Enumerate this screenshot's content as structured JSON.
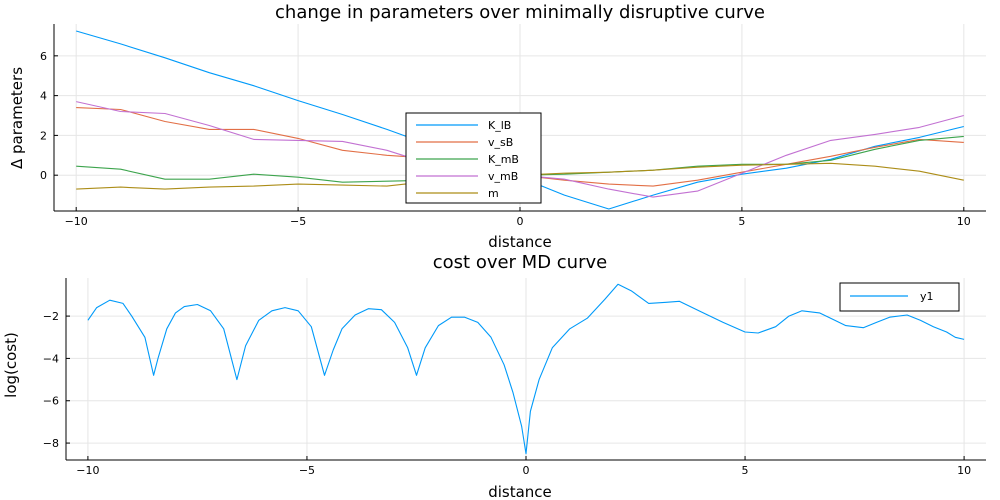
{
  "chart_data": [
    {
      "type": "line",
      "title": "change in parameters over minimally disruptive curve",
      "xlabel": "distance",
      "ylabel": "Δ parameters",
      "xlim": [
        -10.5,
        10.5
      ],
      "ylim": [
        -1.8,
        7.6
      ],
      "xticks": [
        -10,
        -5,
        0,
        5,
        10
      ],
      "xtick_labels": [
        "−10",
        "−5",
        "0",
        "5",
        "10"
      ],
      "yticks": [
        0,
        2,
        4,
        6
      ],
      "ytick_labels": [
        "0",
        "2",
        "4",
        "6"
      ],
      "grid": true,
      "legend_position": "center",
      "series": [
        {
          "name": "K_lB",
          "color": "#009AF9",
          "x": [
            -10,
            -9,
            -8,
            -7,
            -6,
            -5,
            -4,
            -3,
            -2,
            -1,
            0,
            1,
            2,
            3,
            4,
            5,
            6,
            7,
            8,
            9,
            10
          ],
          "y": [
            7.25,
            6.6,
            5.9,
            5.15,
            4.5,
            3.75,
            3.05,
            2.3,
            1.5,
            0.7,
            -0.1,
            -1.0,
            -1.7,
            -1.0,
            -0.35,
            0.05,
            0.35,
            0.8,
            1.45,
            1.9,
            2.45
          ]
        },
        {
          "name": "v_sB",
          "color": "#E26F46",
          "x": [
            -10,
            -9,
            -8,
            -7,
            -6,
            -5,
            -4,
            -3,
            -2,
            -1,
            0,
            1,
            2,
            3,
            4,
            5,
            6,
            7,
            8,
            9,
            10
          ],
          "y": [
            3.4,
            3.3,
            2.7,
            2.3,
            2.3,
            1.85,
            1.25,
            1.0,
            0.85,
            0.3,
            0.0,
            -0.25,
            -0.45,
            -0.55,
            -0.25,
            0.15,
            0.55,
            0.95,
            1.4,
            1.8,
            1.65
          ]
        },
        {
          "name": "K_mB",
          "color": "#3DA44D",
          "x": [
            -10,
            -9,
            -8,
            -7,
            -6,
            -5,
            -4,
            -3,
            -2,
            -1,
            0,
            1,
            2,
            3,
            4,
            5,
            6,
            7,
            8,
            9,
            10
          ],
          "y": [
            0.45,
            0.3,
            -0.2,
            -0.2,
            0.05,
            -0.1,
            -0.35,
            -0.3,
            -0.25,
            -0.1,
            0.0,
            0.05,
            0.15,
            0.25,
            0.45,
            0.55,
            0.55,
            0.75,
            1.3,
            1.75,
            1.95
          ]
        },
        {
          "name": "v_mB",
          "color": "#C271D2",
          "x": [
            -10,
            -9,
            -8,
            -7,
            -6,
            -5,
            -4,
            -3,
            -2,
            -1,
            0,
            1,
            2,
            3,
            4,
            5,
            6,
            7,
            8,
            9,
            10
          ],
          "y": [
            3.7,
            3.2,
            3.1,
            2.5,
            1.8,
            1.75,
            1.7,
            1.25,
            0.55,
            0.15,
            0.0,
            -0.2,
            -0.7,
            -1.1,
            -0.8,
            0.1,
            1.0,
            1.75,
            2.05,
            2.4,
            3.0
          ]
        },
        {
          "name": "m",
          "color": "#AC8D18",
          "x": [
            -10,
            -9,
            -8,
            -7,
            -6,
            -5,
            -4,
            -3,
            -2,
            -1,
            0,
            1,
            2,
            3,
            4,
            5,
            6,
            7,
            8,
            9,
            10
          ],
          "y": [
            -0.7,
            -0.6,
            -0.7,
            -0.6,
            -0.55,
            -0.45,
            -0.5,
            -0.55,
            -0.3,
            -0.2,
            0.0,
            0.1,
            0.15,
            0.25,
            0.4,
            0.5,
            0.55,
            0.6,
            0.45,
            0.2,
            -0.25
          ]
        }
      ]
    },
    {
      "type": "line",
      "title": "cost over MD curve",
      "xlabel": "distance",
      "ylabel": "log(cost)",
      "xlim": [
        -10.5,
        10.5
      ],
      "ylim": [
        -8.8,
        -0.2
      ],
      "xticks": [
        -10,
        -5,
        0,
        5,
        10
      ],
      "xtick_labels": [
        "−10",
        "−5",
        "0",
        "5",
        "10"
      ],
      "yticks": [
        -8,
        -6,
        -4,
        -2
      ],
      "ytick_labels": [
        "−8",
        "−6",
        "−4",
        "−2"
      ],
      "grid": true,
      "legend_position": "top-right",
      "series": [
        {
          "name": "y1",
          "color": "#009AF9",
          "x": [
            -10,
            -9.8,
            -9.5,
            -9.2,
            -9.0,
            -8.7,
            -8.5,
            -8.4,
            -8.2,
            -8.0,
            -7.8,
            -7.5,
            -7.2,
            -6.9,
            -6.6,
            -6.4,
            -6.1,
            -5.8,
            -5.5,
            -5.2,
            -4.9,
            -4.6,
            -4.4,
            -4.2,
            -3.9,
            -3.6,
            -3.3,
            -3.0,
            -2.7,
            -2.5,
            -2.3,
            -2.0,
            -1.7,
            -1.4,
            -1.1,
            -0.8,
            -0.5,
            -0.3,
            -0.1,
            0,
            0.1,
            0.3,
            0.6,
            1.0,
            1.4,
            1.8,
            2.1,
            2.4,
            2.8,
            3.2,
            3.5,
            4.0,
            4.5,
            5.0,
            5.3,
            5.7,
            6.0,
            6.3,
            6.7,
            7.0,
            7.3,
            7.7,
            8.0,
            8.3,
            8.7,
            9.0,
            9.3,
            9.6,
            9.8,
            10
          ],
          "y": [
            -2.2,
            -1.6,
            -1.25,
            -1.4,
            -2.0,
            -3.0,
            -4.8,
            -4.0,
            -2.6,
            -1.85,
            -1.55,
            -1.45,
            -1.75,
            -2.6,
            -5.0,
            -3.4,
            -2.2,
            -1.75,
            -1.6,
            -1.75,
            -2.5,
            -4.8,
            -3.6,
            -2.6,
            -1.95,
            -1.65,
            -1.7,
            -2.3,
            -3.5,
            -4.8,
            -3.5,
            -2.45,
            -2.05,
            -2.05,
            -2.3,
            -3.0,
            -4.3,
            -5.6,
            -7.2,
            -8.5,
            -6.5,
            -5.0,
            -3.5,
            -2.6,
            -2.1,
            -1.2,
            -0.5,
            -0.8,
            -1.4,
            -1.35,
            -1.3,
            -1.8,
            -2.3,
            -2.75,
            -2.8,
            -2.5,
            -2.0,
            -1.75,
            -1.85,
            -2.15,
            -2.45,
            -2.55,
            -2.3,
            -2.05,
            -1.95,
            -2.2,
            -2.5,
            -2.75,
            -3.0,
            -3.1
          ]
        }
      ]
    }
  ]
}
